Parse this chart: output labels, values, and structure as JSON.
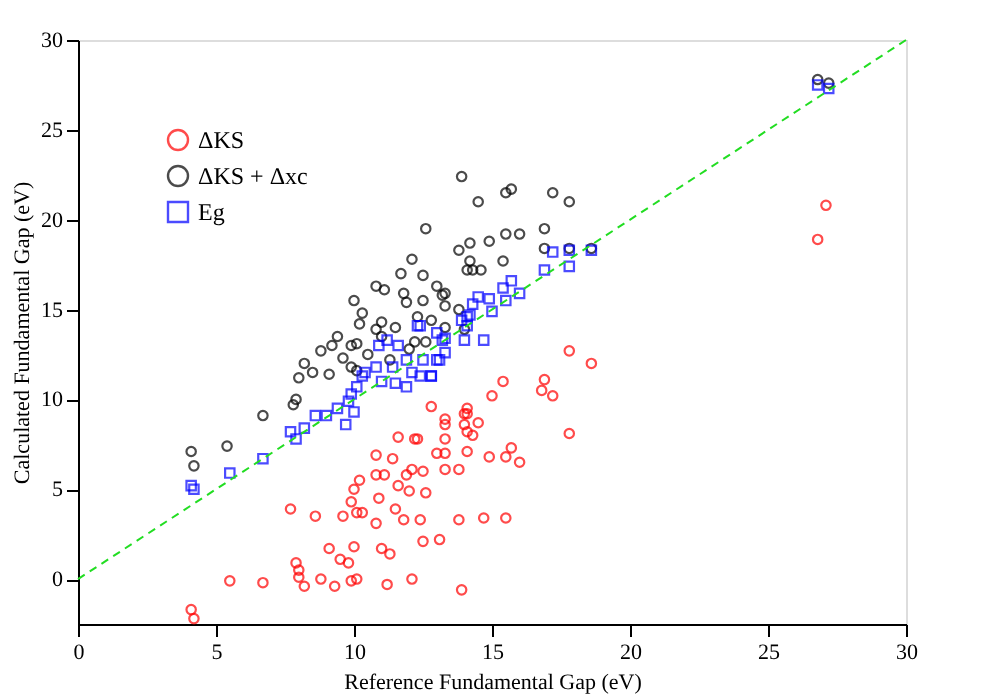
{
  "chart_data": {
    "type": "scatter",
    "xlabel": "Reference Fundamental Gap (eV)",
    "ylabel": "Calculated Fundamental Gap (eV)",
    "xlim": [
      0,
      30
    ],
    "ylim": [
      -2.5,
      30
    ],
    "xticks": [
      0,
      5,
      10,
      15,
      20,
      25,
      30
    ],
    "yticks": [
      0,
      5,
      10,
      15,
      20,
      25,
      30
    ],
    "grid": false,
    "legend": "top left",
    "series": [
      {
        "name": "ΔKS",
        "color": "#ff0000",
        "marker": "circle",
        "x": [
          4.1,
          4.2,
          5.5,
          6.7,
          7.7,
          7.9,
          8.0,
          8.0,
          8.2,
          8.6,
          8.8,
          9.1,
          9.3,
          9.5,
          9.8,
          10.0,
          9.9,
          10.1,
          9.6,
          9.9,
          10.1,
          10.3,
          10.0,
          10.2,
          10.8,
          10.8,
          10.9,
          11.0,
          11.3,
          11.2,
          11.6,
          10.8,
          11.4,
          11.1,
          11.6,
          11.9,
          12.1,
          12.3,
          12.5,
          12.0,
          11.5,
          11.8,
          12.4,
          12.5,
          12.1,
          12.8,
          13.0,
          13.1,
          13.3,
          13.3,
          13.8,
          13.9,
          14.1,
          14.1,
          14.1,
          13.8,
          12.2,
          13.3,
          17.8,
          18.6,
          15.4,
          16.9,
          16.8,
          17.2,
          15.0,
          14.1,
          14.0,
          14.0,
          14.5,
          13.3,
          14.3,
          14.9,
          15.5,
          15.7,
          16.0,
          17.8,
          13.3,
          12.6,
          14.7,
          15.5,
          26.8,
          27.1
        ],
        "values": [
          -1.7,
          -2.2,
          -0.1,
          -0.2,
          3.9,
          0.9,
          0.5,
          0.1,
          -0.4,
          3.5,
          0.0,
          1.7,
          -0.4,
          1.1,
          0.9,
          1.8,
          -0.1,
          0.0,
          3.5,
          4.3,
          3.7,
          3.7,
          5.0,
          5.5,
          3.1,
          5.8,
          4.5,
          1.7,
          1.4,
          -0.3,
          7.9,
          6.9,
          6.7,
          5.8,
          5.2,
          5.8,
          6.1,
          7.8,
          6.0,
          4.9,
          3.9,
          3.3,
          3.3,
          2.1,
          0.0,
          9.6,
          7.0,
          2.2,
          8.6,
          7.0,
          3.3,
          -0.6,
          9.2,
          7.1,
          8.2,
          6.1,
          7.8,
          8.9,
          12.7,
          12.0,
          11.0,
          11.1,
          10.5,
          10.2,
          10.2,
          9.5,
          9.2,
          8.6,
          8.7,
          7.8,
          8.0,
          6.8,
          6.8,
          7.3,
          6.5,
          8.1,
          6.1,
          4.8,
          3.4,
          3.4,
          18.9,
          20.8
        ]
      },
      {
        "name": "ΔKS + Δxc",
        "color": "#000000",
        "marker": "circle",
        "x": [
          13.9,
          12.6,
          12.1,
          13.8,
          11.7,
          12.5,
          10.8,
          11.1,
          13.0,
          13.2,
          10.0,
          11.9,
          10.3,
          11.0,
          9.4,
          9.9,
          8.8,
          9.2,
          10.1,
          8.2,
          8.5,
          9.9,
          9.1,
          8.0,
          10.1,
          7.9,
          7.8,
          6.7,
          5.4,
          4.1,
          4.2,
          14.5,
          15.5,
          15.7,
          17.2,
          17.8,
          14.2,
          14.9,
          15.5,
          16.0,
          16.9,
          14.2,
          15.4,
          14.1,
          14.3,
          14.6,
          16.9,
          17.8,
          18.6,
          13.3,
          12.5,
          13.3,
          13.8,
          12.8,
          13.3,
          14.0,
          12.2,
          12.6,
          10.5,
          11.0,
          11.5,
          12.0,
          11.3,
          10.8,
          12.3,
          11.8,
          10.2,
          9.6,
          26.8,
          27.2
        ],
        "values": [
          22.4,
          19.5,
          17.8,
          18.3,
          17.0,
          16.9,
          16.3,
          16.1,
          16.3,
          15.8,
          15.5,
          15.4,
          14.8,
          14.3,
          13.5,
          13.0,
          12.7,
          13.0,
          13.1,
          12.0,
          11.5,
          11.8,
          11.4,
          11.2,
          11.6,
          10.0,
          9.7,
          9.1,
          7.4,
          7.1,
          6.3,
          21.0,
          21.5,
          21.7,
          21.5,
          21.0,
          18.7,
          18.8,
          19.2,
          19.2,
          19.5,
          17.7,
          17.7,
          17.2,
          17.2,
          17.2,
          18.4,
          18.4,
          18.4,
          15.9,
          15.5,
          15.2,
          15.0,
          14.4,
          14.0,
          13.9,
          13.2,
          13.2,
          12.5,
          13.5,
          14.0,
          12.8,
          12.2,
          13.9,
          14.6,
          15.9,
          14.2,
          12.3,
          27.8,
          27.6
        ]
      },
      {
        "name": "Eg",
        "color": "#0000ff",
        "marker": "square",
        "x": [
          4.1,
          4.2,
          5.5,
          6.7,
          7.7,
          7.9,
          8.2,
          8.6,
          9.0,
          9.7,
          9.4,
          9.8,
          9.9,
          10.1,
          10.3,
          10.0,
          10.9,
          11.2,
          11.6,
          12.3,
          13.0,
          13.2,
          14.1,
          10.8,
          11.4,
          11.9,
          12.1,
          12.8,
          11.0,
          11.5,
          11.9,
          13.0,
          10.4,
          12.4,
          13.3,
          13.9,
          14.2,
          14.1,
          14.0,
          14.7,
          15.0,
          14.5,
          14.9,
          14.3,
          15.4,
          15.5,
          15.7,
          16.0,
          16.9,
          17.2,
          17.8,
          17.8,
          18.6,
          13.1,
          13.3,
          12.5,
          12.8,
          12.4,
          26.8,
          27.2
        ],
        "values": [
          5.2,
          5.0,
          5.9,
          6.7,
          8.2,
          7.8,
          8.4,
          9.1,
          9.1,
          8.6,
          9.5,
          9.9,
          10.3,
          10.7,
          11.3,
          9.3,
          13.0,
          13.3,
          13.0,
          14.1,
          13.7,
          13.3,
          14.6,
          11.8,
          11.8,
          12.2,
          11.5,
          11.3,
          11.0,
          10.9,
          10.7,
          12.2,
          11.5,
          14.1,
          13.4,
          14.4,
          14.7,
          14.1,
          13.3,
          13.3,
          14.9,
          15.7,
          15.6,
          15.3,
          16.2,
          15.5,
          16.6,
          15.9,
          17.2,
          18.2,
          17.4,
          18.3,
          18.3,
          12.2,
          12.6,
          12.2,
          11.3,
          11.3,
          27.5,
          27.3
        ]
      },
      {
        "type": "line",
        "color": "#22dd22",
        "line_style": "dashed",
        "x": [
          0,
          30
        ],
        "values": [
          0,
          30
        ]
      }
    ]
  }
}
